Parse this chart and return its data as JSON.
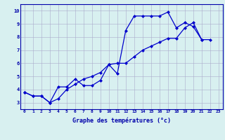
{
  "xlabel": "Graphe des températures (°c)",
  "x": [
    0,
    1,
    2,
    3,
    4,
    5,
    6,
    7,
    8,
    9,
    10,
    11,
    12,
    13,
    14,
    15,
    16,
    17,
    18,
    19,
    20,
    21,
    22,
    23
  ],
  "line1": [
    3.8,
    3.5,
    3.5,
    3.0,
    4.2,
    4.2,
    4.8,
    4.3,
    4.3,
    4.7,
    5.9,
    5.2,
    8.5,
    9.6,
    9.6,
    9.6,
    9.6,
    9.9,
    8.7,
    9.1,
    8.8,
    7.8,
    null,
    null
  ],
  "line2": [
    3.8,
    3.5,
    3.5,
    3.0,
    3.3,
    4.0,
    4.4,
    4.8,
    5.0,
    5.3,
    5.9,
    6.0,
    6.0,
    6.5,
    7.0,
    7.3,
    7.6,
    7.9,
    7.9,
    8.7,
    9.1,
    7.8,
    7.8,
    null
  ],
  "line1_color": "#0000cc",
  "line2_color": "#0000cc",
  "bg_color": "#d8f0f0",
  "grid_color": "#aaaacc",
  "axis_color": "#0000aa",
  "ylim": [
    2.5,
    10.5
  ],
  "yticks": [
    3,
    4,
    5,
    6,
    7,
    8,
    9,
    10
  ],
  "xlim": [
    -0.5,
    23.5
  ],
  "marker": "D",
  "markersize": 2,
  "linewidth": 0.9,
  "tick_fontsize": 4.5,
  "xlabel_fontsize": 6.0
}
